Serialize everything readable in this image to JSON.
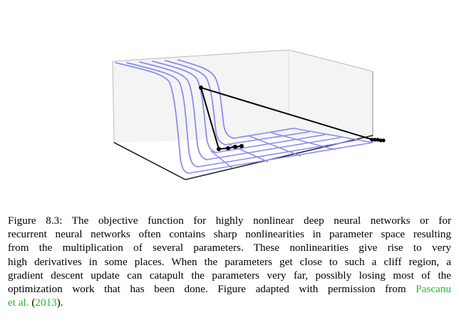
{
  "figure": {
    "label": "Figure 8.3:",
    "caption_lines": [
      "The objective function for highly nonlinear deep neural networks or for",
      "recurrent neural networks often contains sharp nonlinearities in parameter space resulting",
      "from the multiplication of several parameters.  These nonlinearities give rise to very",
      "high derivatives in some places. When the parameters get close to such a cliff region, a",
      "gradient descent update can catapult the parameters very far, possibly losing most of the",
      "optimization work that has been done. Figure adapted with permission from"
    ],
    "citation_author_a": "Pascanu",
    "citation_author_b": "et al.",
    "citation_open": "(",
    "citation_year": "2013",
    "citation_close": ").",
    "colors": {
      "surface": "#8c8cf0",
      "path": "#000000",
      "box": "#555555",
      "citation": "#22bb22"
    }
  }
}
